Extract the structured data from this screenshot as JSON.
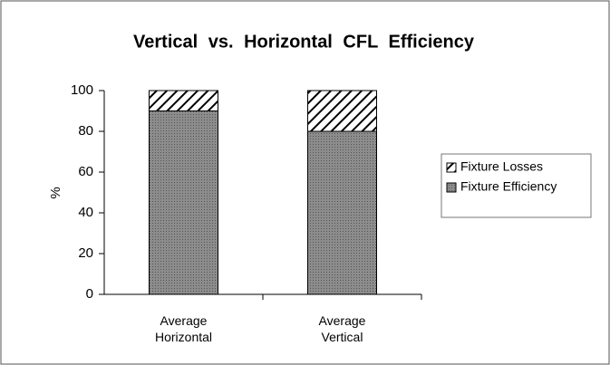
{
  "chart_data": {
    "type": "stacked_bar",
    "title": "Vertical vs. Horizontal CFL Efficiency",
    "y_label": "%",
    "categories": [
      "Average Horizontal",
      "Average Vertical"
    ],
    "series": [
      {
        "name": "Fixture Efficiency",
        "color": "#8c8c8c",
        "pattern": "solid",
        "values": [
          90,
          80
        ]
      },
      {
        "name": "Fixture Losses",
        "color": "#000000",
        "pattern": "hatch",
        "values": [
          10,
          20
        ]
      }
    ],
    "ylim": [
      0,
      100
    ],
    "yticks": [
      0,
      20,
      40,
      60,
      80,
      100
    ],
    "grid": false,
    "legend": "right"
  }
}
